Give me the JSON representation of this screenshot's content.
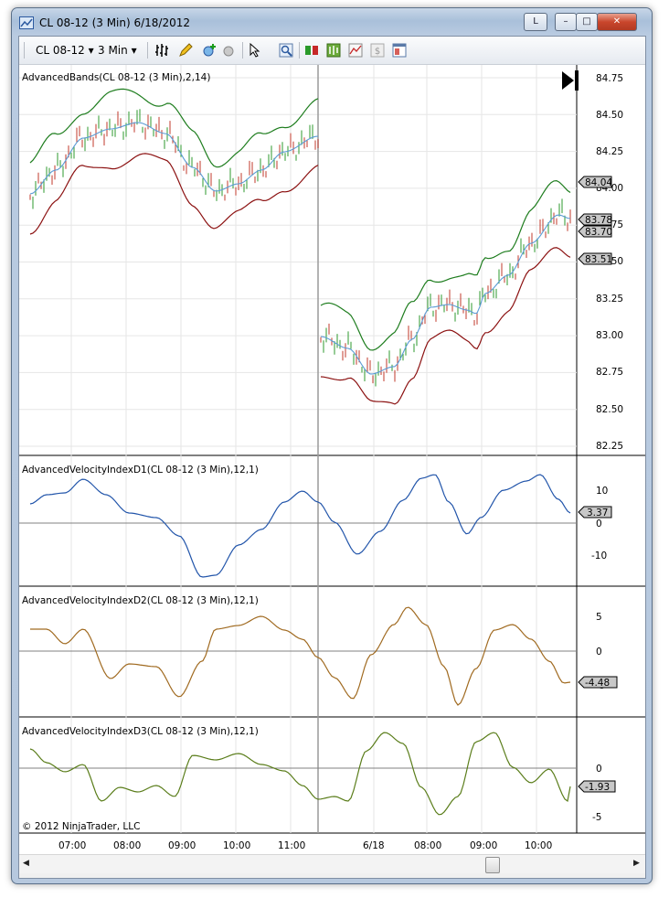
{
  "window": {
    "title": "CL 08-12 (3 Min)  6/18/2012",
    "buttons": [
      "L",
      "–",
      "□",
      "✕"
    ]
  },
  "toolbar": {
    "instrument": "CL 08-12",
    "interval": "3 Min"
  },
  "panels": {
    "price": {
      "label": "AdvancedBands(CL 08-12 (3 Min),2,14)",
      "ticks": [
        "84.75",
        "84.50",
        "84.25",
        "84.00",
        "83.75",
        "83.50",
        "83.25",
        "83.00",
        "82.75",
        "82.50",
        "82.25"
      ],
      "badges": [
        "84.04",
        "83.78",
        "83.70",
        "83.51"
      ]
    },
    "d1": {
      "label": "AdvancedVelocityIndexD1(CL 08-12 (3 Min),12,1)",
      "ticks": [
        "10",
        "0",
        "-10"
      ],
      "badge": "3.37"
    },
    "d2": {
      "label": "AdvancedVelocityIndexD2(CL 08-12 (3 Min),12,1)",
      "ticks": [
        "5",
        "0",
        "-5"
      ],
      "badge": "-4.48"
    },
    "d3": {
      "label": "AdvancedVelocityIndexD3(CL 08-12 (3 Min),12,1)",
      "ticks": [
        "0",
        "-5"
      ],
      "badge": "-1.93"
    }
  },
  "xaxis": {
    "labels": [
      "07:00",
      "08:00",
      "09:00",
      "10:00",
      "11:00",
      "6/18",
      "08:00",
      "09:00",
      "10:00"
    ]
  },
  "copyright": "© 2012 NinjaTrader, LLC",
  "colors": {
    "upper_band": "#1e7d1e",
    "lower_band": "#8b1010",
    "mid_band": "#5b9bd5",
    "d1_line": "#2255aa",
    "d2_line": "#a06a20",
    "d3_line": "#5a7d1a"
  }
}
